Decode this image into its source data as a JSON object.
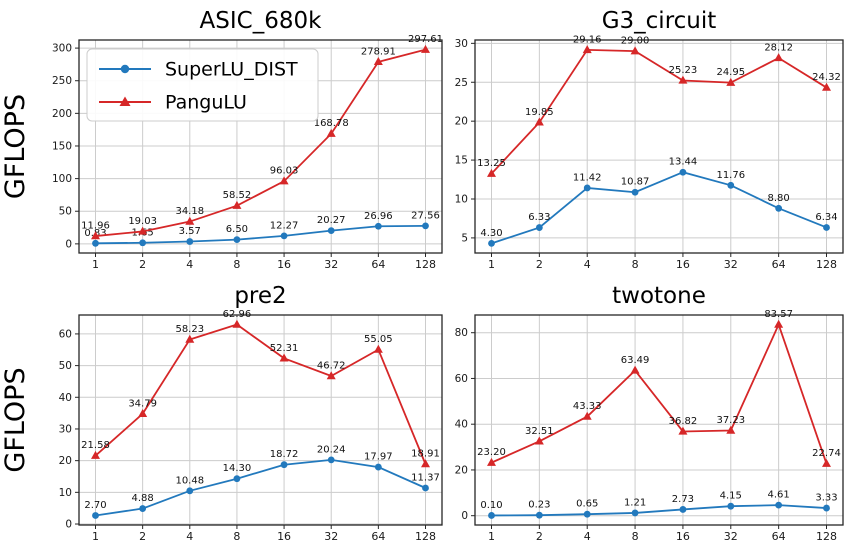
{
  "figure": {
    "background": "#ffffff",
    "ylabel": "GFLOPS",
    "grid_color": "#cccccc",
    "axis_color": "#262626",
    "legend": [
      {
        "label": "SuperLU_DIST",
        "color": "#2279bd",
        "marker": "circle"
      },
      {
        "label": "PanguLU",
        "color": "#d62728",
        "marker": "triangle"
      }
    ]
  },
  "chart_data": [
    {
      "type": "line",
      "title": "ASIC_680k",
      "xscale": "log2",
      "xticklabels": [
        "1",
        "2",
        "4",
        "8",
        "16",
        "32",
        "64",
        "128"
      ],
      "ylabel": "GFLOPS",
      "show_legend": true,
      "grid": true,
      "ylim": [
        -14.0,
        312.4
      ],
      "yticklabels": [
        "0",
        "50",
        "100",
        "150",
        "200",
        "250",
        "300"
      ],
      "series": [
        {
          "name": "SuperLU_DIST",
          "color": "#2279bd",
          "marker": "circle",
          "values": [
            "0.83",
            "1.65",
            "3.57",
            "6.50",
            "12.27",
            "20.27",
            "26.96",
            "27.56"
          ]
        },
        {
          "name": "PanguLU",
          "color": "#d62728",
          "marker": "triangle",
          "values": [
            "11.96",
            "19.03",
            "34.18",
            "58.52",
            "96.03",
            "168.78",
            "278.91",
            "297.61"
          ]
        }
      ]
    },
    {
      "type": "line",
      "title": "G3_circuit",
      "xscale": "log2",
      "xticklabels": [
        "1",
        "2",
        "4",
        "8",
        "16",
        "32",
        "64",
        "128"
      ],
      "ylabel": "",
      "show_legend": false,
      "grid": true,
      "ylim": [
        3.06,
        30.43
      ],
      "yticklabels": [
        "5",
        "10",
        "15",
        "20",
        "25",
        "30"
      ],
      "series": [
        {
          "name": "SuperLU_DIST",
          "color": "#2279bd",
          "marker": "circle",
          "values": [
            "4.30",
            "6.33",
            "11.42",
            "10.87",
            "13.44",
            "11.76",
            "8.80",
            "6.34"
          ]
        },
        {
          "name": "PanguLU",
          "color": "#d62728",
          "marker": "triangle",
          "values": [
            "13.25",
            "19.85",
            "29.16",
            "29.00",
            "25.23",
            "24.95",
            "28.12",
            "24.32"
          ]
        }
      ]
    },
    {
      "type": "line",
      "title": "pre2",
      "xscale": "log2",
      "xticklabels": [
        "1",
        "2",
        "4",
        "8",
        "16",
        "32",
        "64",
        "128"
      ],
      "ylabel": "GFLOPS",
      "show_legend": false,
      "grid": true,
      "ylim": [
        -0.31,
        65.97
      ],
      "yticklabels": [
        "0",
        "10",
        "20",
        "30",
        "40",
        "50",
        "60"
      ],
      "series": [
        {
          "name": "SuperLU_DIST",
          "color": "#2279bd",
          "marker": "circle",
          "values": [
            "2.70",
            "4.88",
            "10.48",
            "14.30",
            "18.72",
            "20.24",
            "17.97",
            "11.37"
          ]
        },
        {
          "name": "PanguLU",
          "color": "#d62728",
          "marker": "triangle",
          "values": [
            "21.58",
            "34.79",
            "58.23",
            "62.96",
            "52.31",
            "46.72",
            "55.05",
            "18.91"
          ]
        }
      ]
    },
    {
      "type": "line",
      "title": "twotone",
      "xscale": "log2",
      "xticklabels": [
        "1",
        "2",
        "4",
        "8",
        "16",
        "32",
        "64",
        "128"
      ],
      "ylabel": "",
      "show_legend": false,
      "grid": true,
      "ylim": [
        -4.07,
        87.74
      ],
      "yticklabels": [
        "0",
        "20",
        "40",
        "60",
        "80"
      ],
      "series": [
        {
          "name": "SuperLU_DIST",
          "color": "#2279bd",
          "marker": "circle",
          "values": [
            "0.10",
            "0.23",
            "0.65",
            "1.21",
            "2.73",
            "4.15",
            "4.61",
            "3.33"
          ]
        },
        {
          "name": "PanguLU",
          "color": "#d62728",
          "marker": "triangle",
          "values": [
            "23.20",
            "32.51",
            "43.33",
            "63.49",
            "36.82",
            "37.23",
            "83.57",
            "22.74"
          ]
        }
      ]
    }
  ]
}
